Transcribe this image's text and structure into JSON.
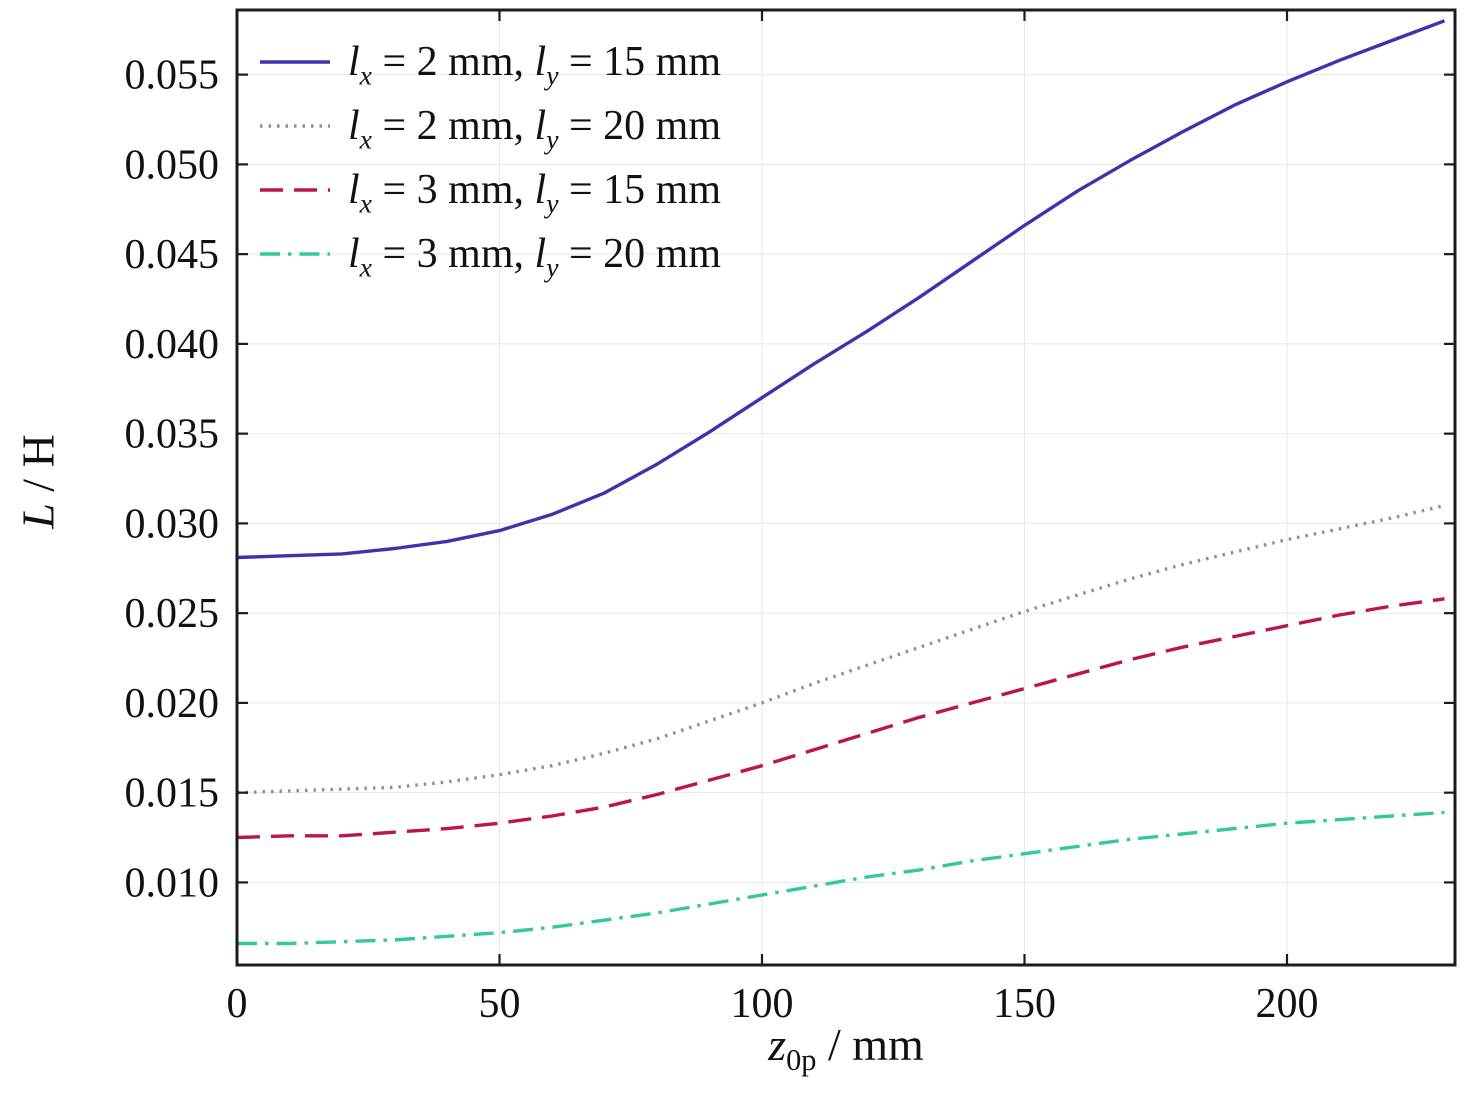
{
  "chart_data": {
    "type": "line",
    "title": "",
    "xlabel_parts": {
      "base": "z",
      "sub": "0p",
      "rest": " / mm"
    },
    "ylabel_parts": {
      "italic": "L",
      "rest": " / H"
    },
    "xlim": [
      0,
      232
    ],
    "ylim": [
      0.0054,
      0.0586
    ],
    "x_ticks": [
      0,
      50,
      100,
      150,
      200
    ],
    "y_ticks": [
      0.01,
      0.015,
      0.02,
      0.025,
      0.03,
      0.035,
      0.04,
      0.045,
      0.05,
      0.055
    ],
    "grid": true,
    "grid_color": "#e7e7e7",
    "frame_color": "#1c1c1c",
    "legend_position": "top-left",
    "legend_glue": {
      "sym": "l",
      "subx": "x",
      "suby": "y",
      "eq": " = ",
      "unit_comma": " mm, ",
      "unit": " mm"
    },
    "x": [
      0,
      10,
      20,
      30,
      40,
      50,
      60,
      70,
      80,
      90,
      100,
      110,
      120,
      130,
      140,
      150,
      160,
      170,
      180,
      190,
      200,
      210,
      220,
      230
    ],
    "series": [
      {
        "name": "lx = 2 mm, ly = 15 mm",
        "lx": "2",
        "ly": "15",
        "color": "#3b35ad",
        "style": "solid",
        "y": [
          0.0281,
          0.0282,
          0.0283,
          0.0286,
          0.029,
          0.0296,
          0.0305,
          0.0317,
          0.0333,
          0.0351,
          0.037,
          0.0389,
          0.0407,
          0.0426,
          0.0446,
          0.0466,
          0.0485,
          0.0502,
          0.0518,
          0.0533,
          0.0546,
          0.0558,
          0.0569,
          0.058
        ]
      },
      {
        "name": "lx = 2 mm, ly = 20 mm",
        "lx": "2",
        "ly": "20",
        "color": "#8f8f8f",
        "style": "dotted",
        "y": [
          0.015,
          0.0151,
          0.0152,
          0.0153,
          0.0156,
          0.016,
          0.0165,
          0.0172,
          0.018,
          0.019,
          0.02,
          0.0211,
          0.0221,
          0.0231,
          0.0241,
          0.0251,
          0.026,
          0.0269,
          0.0277,
          0.0284,
          0.0291,
          0.0297,
          0.0303,
          0.031
        ]
      },
      {
        "name": "lx = 3 mm, ly = 15 mm",
        "lx": "3",
        "ly": "15",
        "color": "#bd1450",
        "style": "dashed",
        "y": [
          0.0125,
          0.0126,
          0.0126,
          0.0128,
          0.013,
          0.0133,
          0.0137,
          0.0142,
          0.0149,
          0.0157,
          0.0165,
          0.0174,
          0.0183,
          0.0192,
          0.02,
          0.0208,
          0.0216,
          0.0224,
          0.0231,
          0.0237,
          0.0243,
          0.0249,
          0.0254,
          0.0258
        ]
      },
      {
        "name": "lx = 3 mm, ly = 20 mm",
        "lx": "3",
        "ly": "20",
        "color": "#35c79e",
        "style": "dashdot",
        "y": [
          0.0066,
          0.0066,
          0.0067,
          0.0068,
          0.007,
          0.0072,
          0.0075,
          0.0079,
          0.0083,
          0.0088,
          0.0093,
          0.0098,
          0.0103,
          0.0107,
          0.0112,
          0.0116,
          0.012,
          0.0124,
          0.0127,
          0.013,
          0.0133,
          0.0135,
          0.0137,
          0.0139
        ]
      }
    ]
  }
}
